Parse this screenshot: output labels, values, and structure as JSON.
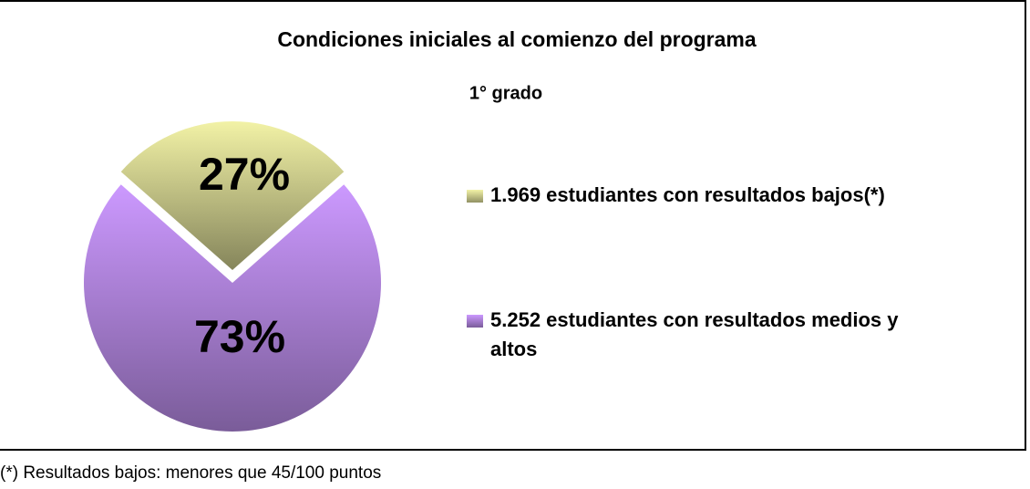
{
  "chart_data": {
    "type": "pie",
    "title": "Condiciones iniciales al comienzo del programa",
    "subtitle": "1° grado",
    "categories": [
      "1.969 estudiantes con resultados bajos(*)",
      "5.252 estudiantes con resultados medios y altos"
    ],
    "values": [
      27,
      73
    ],
    "value_labels": [
      "27%",
      "73%"
    ],
    "colors": [
      "#f2f2a6",
      "#cc99ff"
    ],
    "legend": "right",
    "footnote": "(*) Resultados bajos: menores que 45/100 puntos"
  }
}
